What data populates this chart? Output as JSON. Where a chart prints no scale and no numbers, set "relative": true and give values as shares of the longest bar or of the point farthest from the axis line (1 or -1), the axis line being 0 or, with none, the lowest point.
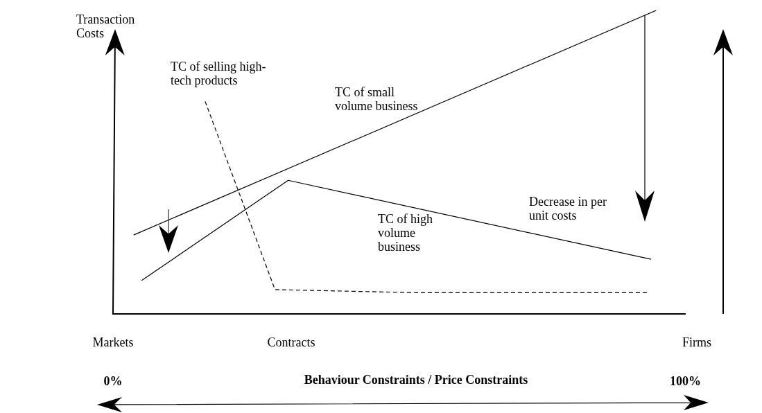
{
  "chart_data": {
    "type": "line",
    "relative": true,
    "ylabel": "Transaction Costs",
    "xlabel": "Behaviour Constraints / Price Constraints",
    "xlim": [
      0,
      100
    ],
    "xticks": [
      {
        "value": 0,
        "label": "0%"
      },
      {
        "value": 100,
        "label": "100%"
      }
    ],
    "grid": false,
    "legend": false,
    "marker": "none",
    "series": [
      {
        "color": "#000000",
        "x": [
          3.6,
          94.9
        ],
        "values": [
          0.26,
          1.0
        ],
        "line_style": "solid"
      },
      {
        "color": "#000000",
        "x": [
          5.0,
          30.6,
          94.0
        ],
        "values": [
          0.11,
          0.44,
          0.18
        ],
        "line_style": "solid"
      },
      {
        "color": "#000000",
        "x": [
          16.1,
          28.3,
          53.1,
          93.4
        ],
        "values": [
          0.7,
          0.08,
          0.07,
          0.07
        ],
        "line_style": "dashed"
      }
    ],
    "annotations": [
      "TC of selling high-tech products",
      "TC of small volume business",
      "Decrease in per unit costs",
      "TC of high volume business",
      "Markets",
      "Contracts",
      "Firms"
    ]
  }
}
